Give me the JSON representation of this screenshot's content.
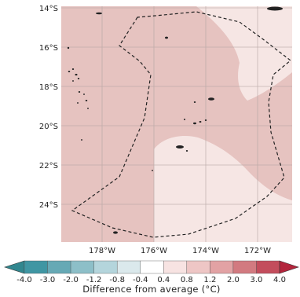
{
  "map": {
    "lat_labels": [
      "14°S",
      "16°S",
      "18°S",
      "20°S",
      "22°S",
      "24°S"
    ],
    "lon_labels": [
      "178°W",
      "176°W",
      "174°W",
      "172°W"
    ]
  },
  "colors": {
    "region_dark": "#e6c3c0",
    "region_light": "#f6e6e4",
    "gridline": "#b7a7a5",
    "boundary": "#222222",
    "land": "#222222"
  },
  "colorbar": {
    "ticks": [
      "-4.0",
      "-3.0",
      "-2.0",
      "-1.2",
      "-0.8",
      "-0.4",
      "0.4",
      "0.8",
      "1.2",
      "2.0",
      "3.0",
      "4.0"
    ],
    "colors": [
      "#3f96a3",
      "#66a9b5",
      "#8dbfc8",
      "#b4d5dc",
      "#dbe9ec",
      "#ffffff",
      "#f7e3e2",
      "#eec6c5",
      "#e2a2a4",
      "#d27a80",
      "#c34d5c"
    ],
    "under_color": "#31878f",
    "over_color": "#b3253c",
    "label": "Difference from average (°C)"
  }
}
